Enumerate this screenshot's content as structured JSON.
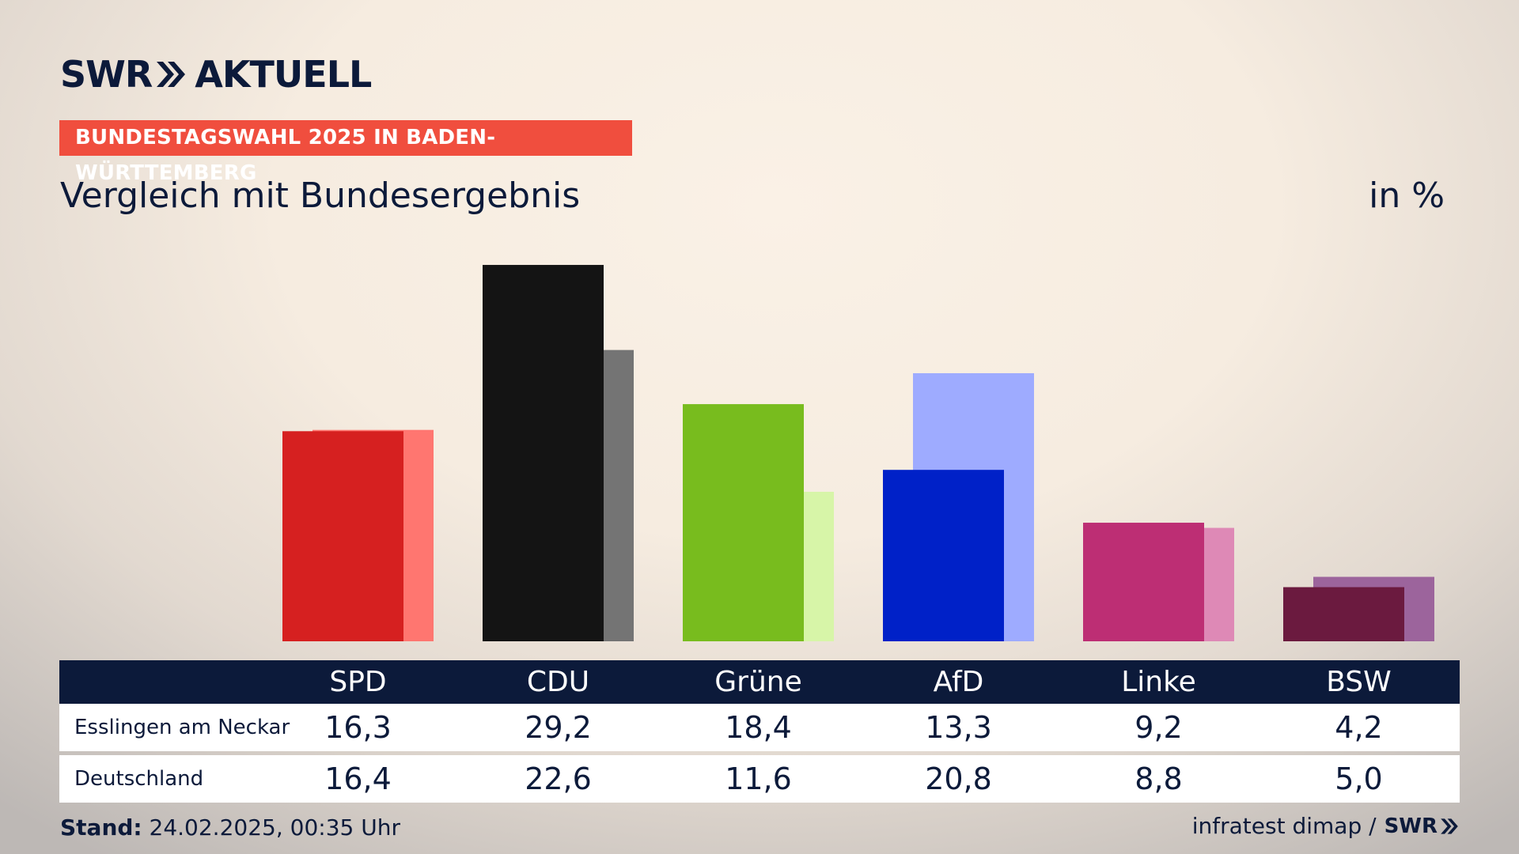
{
  "brand": {
    "logo_left": "SWR",
    "logo_right": "AKTUELL"
  },
  "header": {
    "banner": "BUNDESTAGSWAHL 2025 IN BADEN-WÜRTTEMBERG",
    "subtitle": "Vergleich mit Bundesergebnis",
    "unit": "in %"
  },
  "colors": {
    "navy": "#0c1a3a",
    "banner_red": "#f04e3e"
  },
  "chart_data": {
    "type": "bar",
    "title": "Vergleich mit Bundesergebnis",
    "xlabel": "",
    "ylabel": "in %",
    "categories": [
      "SPD",
      "CDU",
      "Grüne",
      "AfD",
      "Linke",
      "BSW"
    ],
    "series": [
      {
        "name": "Esslingen am Neckar",
        "values": [
          16.3,
          29.2,
          18.4,
          13.3,
          9.2,
          4.2
        ],
        "colors": [
          "#d62020",
          "#141414",
          "#78bc1e",
          "#0021c8",
          "#bd2e74",
          "#6b1a3f"
        ]
      },
      {
        "name": "Deutschland",
        "values": [
          16.4,
          22.6,
          11.6,
          20.8,
          8.8,
          5.0
        ],
        "colors": [
          "#ff7670",
          "#747474",
          "#d7f5a8",
          "#9eabff",
          "#de89b6",
          "#9c649c"
        ]
      }
    ],
    "legend": "none",
    "grid": false
  },
  "table": {
    "headers": [
      "SPD",
      "CDU",
      "Grüne",
      "AfD",
      "Linke",
      "BSW"
    ],
    "rows": [
      {
        "label": "Esslingen am Neckar",
        "values": [
          "16,3",
          "29,2",
          "18,4",
          "13,3",
          "9,2",
          "4,2"
        ]
      },
      {
        "label": "Deutschland",
        "values": [
          "16,4",
          "22,6",
          "11,6",
          "20,8",
          "8,8",
          "5,0"
        ]
      }
    ]
  },
  "footer": {
    "stand_label": "Stand:",
    "stand_value": " 24.02.2025, 00:35 Uhr",
    "source": "infratest dimap /",
    "source_logo": "SWR"
  }
}
